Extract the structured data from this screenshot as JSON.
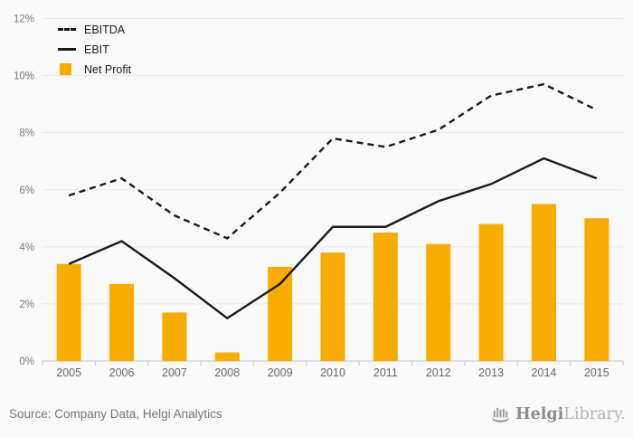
{
  "page": {
    "background": "#fafafa",
    "footer": {
      "source_text": "Source: Company Data, Helgi Analytics",
      "logo_bold": "Helgi",
      "logo_light": "Library."
    }
  },
  "chart_data": {
    "type": "bar",
    "title": "",
    "categories": [
      "2005",
      "2006",
      "2007",
      "2008",
      "2009",
      "2010",
      "2011",
      "2012",
      "2013",
      "2014",
      "2015"
    ],
    "series": [
      {
        "name": "EBITDA",
        "type": "line",
        "line_style": "dashed",
        "color": "#1a1a1a",
        "values": [
          5.8,
          6.4,
          5.1,
          4.3,
          5.9,
          7.8,
          7.5,
          8.1,
          9.3,
          9.7,
          8.8
        ]
      },
      {
        "name": "EBIT",
        "type": "line",
        "line_style": "solid",
        "color": "#1a1a1a",
        "values": [
          3.4,
          4.2,
          2.9,
          1.5,
          2.7,
          4.7,
          4.7,
          5.6,
          6.2,
          7.1,
          6.4
        ]
      },
      {
        "name": "Net Profit",
        "type": "bar",
        "color": "#f8ab00",
        "values": [
          3.4,
          2.7,
          1.7,
          0.3,
          3.3,
          3.8,
          4.5,
          4.1,
          4.8,
          5.5,
          5.0
        ]
      }
    ],
    "ylim": [
      0,
      12
    ],
    "ytick_step": 2,
    "ytick_suffix": "%",
    "grid": true,
    "legend_position": "top-left",
    "grid_color": "#e8e8e8",
    "axis_color": "#c5cbd8",
    "ytick_color": "#75787f",
    "xtick_color": "#63666c"
  }
}
